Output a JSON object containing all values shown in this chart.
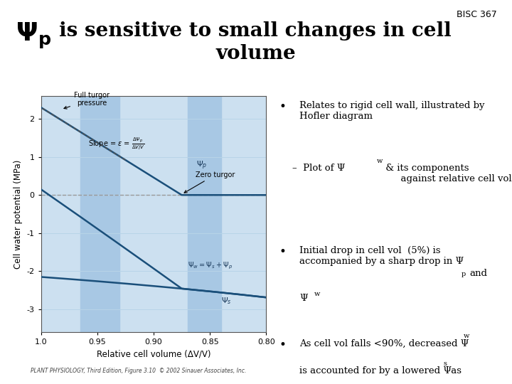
{
  "bisc_label": "BISC 367",
  "bg_color": "#ffffff",
  "plot_bg_light": "#cce0f0",
  "plot_bg_stripe": "#a8c8e4",
  "xlabel": "Relative cell volume (ΔV/V)",
  "ylabel": "Cell water potential (MPa)",
  "xlim": [
    1.0,
    0.8
  ],
  "ylim": [
    -3.6,
    2.6
  ],
  "yticks": [
    2,
    1,
    0,
    -1,
    -2,
    -3
  ],
  "xticks": [
    1.0,
    0.95,
    0.9,
    0.85,
    0.8
  ],
  "caption": "PLANT PHYSIOLOGY, Third Edition, Figure 3.10  © 2002 Sinauer Associates, Inc.",
  "line_color": "#1a4f7a",
  "tangent_color": "#555555",
  "zero_line_color": "#999999",
  "title_fontsize": 24,
  "body_fontsize": 10
}
